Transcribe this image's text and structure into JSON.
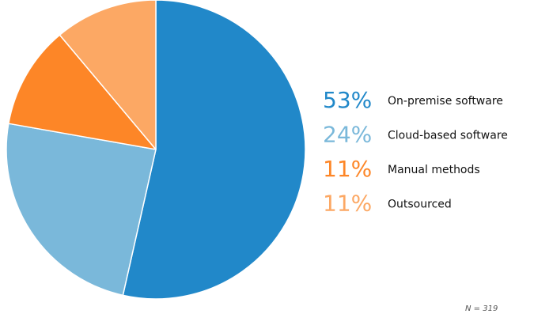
{
  "chart_data": {
    "type": "pie",
    "categories": [
      "On-premise software",
      "Cloud-based software",
      "Manual methods",
      "Outsourced"
    ],
    "values": [
      53,
      24,
      11,
      11
    ],
    "value_labels": [
      "53%",
      "24%",
      "11%",
      "11%"
    ],
    "colors": [
      "#2188c9",
      "#7ab8da",
      "#fd8627",
      "#fca864"
    ],
    "start_angle_deg": 0,
    "direction": "clockwise",
    "legend_position": "right",
    "note": "N = 319"
  }
}
